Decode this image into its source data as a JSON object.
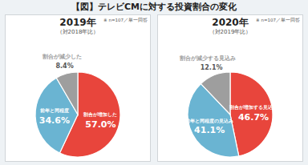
{
  "title": "【図】テレビCMに対する投資割合の変化",
  "chart_data": [
    {
      "type": "pie",
      "title": "2019年",
      "subtitle": "（対2018年比）",
      "annotations": [
        "※ n=107／単一回答"
      ],
      "categories": [
        "割合が増加した",
        "前年と同程度",
        "割合が減少した"
      ],
      "values": [
        57.0,
        34.6,
        8.4
      ],
      "value_labels": [
        "57.0%",
        "34.6%",
        "8.4%"
      ],
      "colors": [
        "#e8453c",
        "#6ab4d2",
        "#9e9e9e"
      ],
      "data_labels": true
    },
    {
      "type": "pie",
      "title": "2020年",
      "subtitle": "（対2019年比）",
      "annotations": [
        "※ n=107／単一回答"
      ],
      "categories": [
        "割合が増加する見込み",
        "前年と同程度の見込み",
        "割合が減少する見込み"
      ],
      "values": [
        46.7,
        41.1,
        12.1
      ],
      "value_labels": [
        "46.7%",
        "41.1%",
        "12.1%"
      ],
      "colors": [
        "#e8453c",
        "#6ab4d2",
        "#9e9e9e"
      ],
      "data_labels": true
    }
  ]
}
